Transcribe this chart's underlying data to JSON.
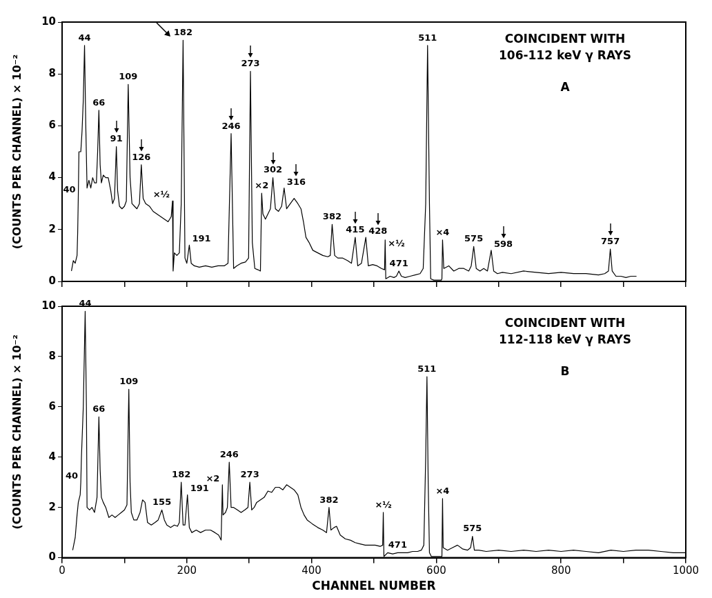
{
  "chart_data": [
    {
      "type": "line",
      "color": "#000000",
      "marker": "none",
      "line_style": "solid",
      "tick_labels": "y",
      "ylabel": "(COUNTS PER CHANNEL) × 10⁻²",
      "xlim": [
        0,
        1000
      ],
      "xticks": [
        0,
        {
          "value": 100,
          "label": null
        },
        200,
        {
          "value": 300,
          "label": null
        },
        400,
        {
          "value": 500,
          "label": null
        },
        600,
        {
          "value": 700,
          "label": null
        },
        800,
        {
          "value": 900,
          "label": null
        },
        1000
      ],
      "ylim": [
        0,
        10
      ],
      "yticks": [
        0,
        2,
        4,
        6,
        8,
        10
      ],
      "x": [
        15,
        18,
        21,
        24,
        25,
        26,
        27,
        30,
        32,
        34,
        36,
        38,
        40,
        43,
        46,
        49,
        52,
        55,
        57,
        59,
        61,
        63,
        66,
        70,
        74,
        78,
        81,
        84,
        87,
        89,
        92,
        96,
        100,
        103,
        106,
        109,
        112,
        116,
        120,
        124,
        127,
        130,
        134,
        140,
        146,
        152,
        158,
        164,
        170,
        175,
        177,
        178,
        180,
        184,
        188,
        191,
        194,
        197,
        200,
        204,
        207,
        212,
        220,
        230,
        240,
        250,
        260,
        266,
        271,
        275,
        280,
        287,
        294,
        299,
        302,
        305,
        309,
        314,
        318,
        320,
        322,
        326,
        330,
        334,
        338,
        342,
        347,
        352,
        356,
        360,
        366,
        372,
        378,
        383,
        387,
        391,
        396,
        402,
        410,
        418,
        426,
        430,
        433,
        437,
        442,
        450,
        458,
        464,
        470,
        474,
        480,
        487,
        491,
        498,
        505,
        512,
        517,
        518,
        519,
        526,
        532,
        536,
        540,
        544,
        550,
        558,
        566,
        574,
        579,
        583,
        586,
        589,
        591,
        596,
        602,
        608,
        609,
        610,
        612,
        620,
        628,
        636,
        644,
        652,
        656,
        660,
        664,
        670,
        676,
        682,
        688,
        692,
        698,
        706,
        720,
        740,
        760,
        780,
        800,
        820,
        840,
        860,
        870,
        876,
        879,
        882,
        888,
        896,
        904,
        912,
        921
      ],
      "values": [
        0.4,
        0.8,
        0.7,
        1.0,
        1.9,
        3.3,
        5.0,
        5.0,
        5.8,
        7.0,
        9.1,
        6.0,
        3.6,
        3.9,
        3.6,
        4.0,
        3.8,
        3.8,
        5.0,
        6.6,
        4.5,
        3.8,
        4.1,
        4.0,
        4.0,
        3.5,
        3.0,
        3.2,
        5.2,
        3.5,
        2.9,
        2.8,
        2.9,
        3.1,
        7.6,
        4.0,
        3.0,
        2.9,
        2.8,
        3.0,
        4.5,
        3.2,
        3.0,
        2.9,
        2.7,
        2.6,
        2.5,
        2.4,
        2.3,
        2.5,
        3.1,
        0.4,
        1.1,
        1.0,
        1.1,
        3.0,
        9.3,
        0.9,
        0.7,
        1.4,
        0.7,
        0.6,
        0.55,
        0.6,
        0.55,
        0.6,
        0.6,
        0.7,
        5.7,
        0.5,
        0.6,
        0.7,
        0.75,
        0.9,
        8.1,
        1.5,
        0.5,
        0.45,
        0.4,
        3.4,
        2.6,
        2.4,
        2.6,
        2.8,
        4.0,
        2.8,
        2.7,
        2.9,
        3.6,
        2.8,
        3.0,
        3.2,
        3.0,
        2.8,
        2.3,
        1.7,
        1.5,
        1.2,
        1.1,
        1.0,
        0.95,
        1.0,
        2.2,
        1.0,
        0.9,
        0.9,
        0.8,
        0.7,
        1.7,
        0.6,
        0.7,
        1.7,
        0.6,
        0.65,
        0.6,
        0.5,
        0.45,
        1.6,
        0.1,
        0.2,
        0.15,
        0.2,
        0.4,
        0.2,
        0.15,
        0.2,
        0.25,
        0.3,
        0.5,
        3.0,
        9.1,
        3.0,
        0.1,
        0.05,
        0.05,
        0.05,
        0.1,
        1.6,
        0.5,
        0.6,
        0.4,
        0.5,
        0.5,
        0.4,
        0.6,
        1.35,
        0.5,
        0.4,
        0.5,
        0.4,
        1.2,
        0.4,
        0.3,
        0.35,
        0.3,
        0.4,
        0.35,
        0.3,
        0.35,
        0.3,
        0.3,
        0.25,
        0.3,
        0.4,
        1.25,
        0.4,
        0.2,
        0.2,
        0.15,
        0.2,
        0.2
      ],
      "annotations": [
        {
          "text": "40",
          "x": 26,
          "y": 3.3
        },
        {
          "text": "44",
          "x": 36,
          "y": 9.1
        },
        {
          "text": "66",
          "x": 59,
          "y": 6.6
        },
        {
          "text": "91",
          "x": 87,
          "y": 5.2
        },
        {
          "text": "109",
          "x": 106,
          "y": 7.6
        },
        {
          "text": "126",
          "x": 127,
          "y": 4.5
        },
        {
          "text": "182",
          "x": 194,
          "y": 9.3
        },
        {
          "text": "191",
          "x": 204,
          "y": 1.4
        },
        {
          "text": "246",
          "x": 271,
          "y": 5.7
        },
        {
          "text": "273",
          "x": 302,
          "y": 8.1
        },
        {
          "text": "302",
          "x": 338,
          "y": 4.0
        },
        {
          "text": "316",
          "x": 356,
          "y": 3.6
        },
        {
          "text": "382",
          "x": 433,
          "y": 2.2
        },
        {
          "text": "415",
          "x": 470,
          "y": 1.7
        },
        {
          "text": "428",
          "x": 487,
          "y": 1.7
        },
        {
          "text": "471",
          "x": 540,
          "y": 0.4
        },
        {
          "text": "511",
          "x": 586,
          "y": 9.1
        },
        {
          "text": "575",
          "x": 660,
          "y": 1.35
        },
        {
          "text": "598",
          "x": 688,
          "y": 1.2
        },
        {
          "text": "757",
          "x": 879,
          "y": 1.25
        },
        {
          "text": "×½",
          "x": 177,
          "y": 3.1
        },
        {
          "text": "×2",
          "x": 320,
          "y": 3.4
        },
        {
          "text": "×½",
          "x": 518,
          "y": 1.6
        },
        {
          "text": "×4",
          "x": 610,
          "y": 1.6
        },
        "COINCIDENT WITH 106-112 keV γ RAYS",
        "A"
      ]
    },
    {
      "type": "line",
      "color": "#000000",
      "marker": "none",
      "line_style": "solid",
      "xlabel": "CHANNEL NUMBER",
      "ylabel": "(COUNTS PER CHANNEL) × 10⁻²",
      "xlim": [
        0,
        1000
      ],
      "xticks": [
        0,
        {
          "value": 100,
          "label": null
        },
        200,
        {
          "value": 300,
          "label": null
        },
        400,
        {
          "value": 500,
          "label": null
        },
        600,
        {
          "value": 700,
          "label": null
        },
        800,
        {
          "value": 900,
          "label": null
        },
        1000
      ],
      "ylim": [
        0,
        10
      ],
      "yticks": [
        0,
        2,
        4,
        6,
        8,
        10
      ],
      "x": [
        17,
        21,
        24,
        26,
        29,
        30,
        31,
        34,
        37,
        39,
        40,
        44,
        48,
        52,
        56,
        59,
        61,
        63,
        66,
        70,
        75,
        80,
        85,
        90,
        95,
        100,
        104,
        107,
        109,
        111,
        115,
        120,
        125,
        129,
        133,
        137,
        143,
        149,
        154,
        160,
        164,
        168,
        174,
        180,
        185,
        188,
        191,
        194,
        197,
        201,
        204,
        208,
        215,
        222,
        230,
        238,
        245,
        251,
        255,
        257,
        258,
        262,
        265,
        268,
        271,
        275,
        281,
        287,
        293,
        298,
        301,
        304,
        308,
        312,
        318,
        324,
        330,
        336,
        342,
        348,
        354,
        360,
        366,
        372,
        378,
        383,
        388,
        393,
        401,
        410,
        418,
        424,
        428,
        431,
        436,
        440,
        446,
        454,
        462,
        470,
        478,
        486,
        494,
        502,
        510,
        514,
        515,
        516,
        522,
        530,
        538,
        546,
        554,
        562,
        570,
        576,
        580,
        583,
        585,
        587,
        589,
        592,
        600,
        609,
        610,
        611,
        618,
        626,
        634,
        642,
        650,
        655,
        658,
        661,
        668,
        680,
        700,
        720,
        740,
        760,
        780,
        800,
        820,
        840,
        860,
        880,
        900,
        920,
        940,
        960,
        980,
        1000
      ],
      "values": [
        0.3,
        0.8,
        1.7,
        2.2,
        2.5,
        3.0,
        4.0,
        6.0,
        9.8,
        6.0,
        2.0,
        1.9,
        2.0,
        1.8,
        2.4,
        5.6,
        3.5,
        2.4,
        2.2,
        2.0,
        1.6,
        1.7,
        1.6,
        1.7,
        1.8,
        1.9,
        2.1,
        6.7,
        3.0,
        1.8,
        1.5,
        1.5,
        1.8,
        2.3,
        2.2,
        1.4,
        1.3,
        1.4,
        1.5,
        1.9,
        1.5,
        1.3,
        1.2,
        1.3,
        1.25,
        1.4,
        3.0,
        1.3,
        1.3,
        2.5,
        1.2,
        1.0,
        1.1,
        1.0,
        1.1,
        1.1,
        1.0,
        0.9,
        0.7,
        2.9,
        1.7,
        1.8,
        2.0,
        3.8,
        2.0,
        2.0,
        1.9,
        1.8,
        1.9,
        2.0,
        3.0,
        1.9,
        2.0,
        2.2,
        2.3,
        2.4,
        2.65,
        2.6,
        2.8,
        2.8,
        2.7,
        2.9,
        2.8,
        2.7,
        2.5,
        2.0,
        1.7,
        1.5,
        1.35,
        1.2,
        1.1,
        1.0,
        2.0,
        1.1,
        1.2,
        1.25,
        0.9,
        0.75,
        0.7,
        0.6,
        0.55,
        0.5,
        0.5,
        0.5,
        0.45,
        0.5,
        1.8,
        0.05,
        0.2,
        0.15,
        0.2,
        0.2,
        0.2,
        0.25,
        0.25,
        0.3,
        0.5,
        4.0,
        7.2,
        3.0,
        0.2,
        0.05,
        0.05,
        0.05,
        2.35,
        0.4,
        0.3,
        0.4,
        0.5,
        0.35,
        0.3,
        0.4,
        0.85,
        0.3,
        0.3,
        0.25,
        0.3,
        0.25,
        0.3,
        0.25,
        0.3,
        0.25,
        0.3,
        0.25,
        0.2,
        0.3,
        0.25,
        0.3,
        0.3,
        0.25,
        0.2,
        0.2
      ],
      "annotations": [
        {
          "text": "40",
          "x": 30,
          "y": 3.0
        },
        {
          "text": "44",
          "x": 37,
          "y": 9.8
        },
        {
          "text": "66",
          "x": 59,
          "y": 5.6
        },
        {
          "text": "109",
          "x": 107,
          "y": 6.7
        },
        {
          "text": "155",
          "x": 160,
          "y": 1.9
        },
        {
          "text": "182",
          "x": 191,
          "y": 3.0
        },
        {
          "text": "191",
          "x": 201,
          "y": 2.5
        },
        {
          "text": "246",
          "x": 268,
          "y": 3.8
        },
        {
          "text": "273",
          "x": 301,
          "y": 3.0
        },
        {
          "text": "382",
          "x": 428,
          "y": 2.0
        },
        {
          "text": "471",
          "x": 538,
          "y": 0.2
        },
        {
          "text": "511",
          "x": 585,
          "y": 7.2
        },
        {
          "text": "575",
          "x": 658,
          "y": 0.85
        },
        {
          "text": "×2",
          "x": 257,
          "y": 2.9
        },
        {
          "text": "×½",
          "x": 515,
          "y": 1.8
        },
        {
          "text": "×4",
          "x": 610,
          "y": 2.35
        },
        "COINCIDENT WITH 112-118 keV γ RAYS",
        "B"
      ]
    }
  ]
}
